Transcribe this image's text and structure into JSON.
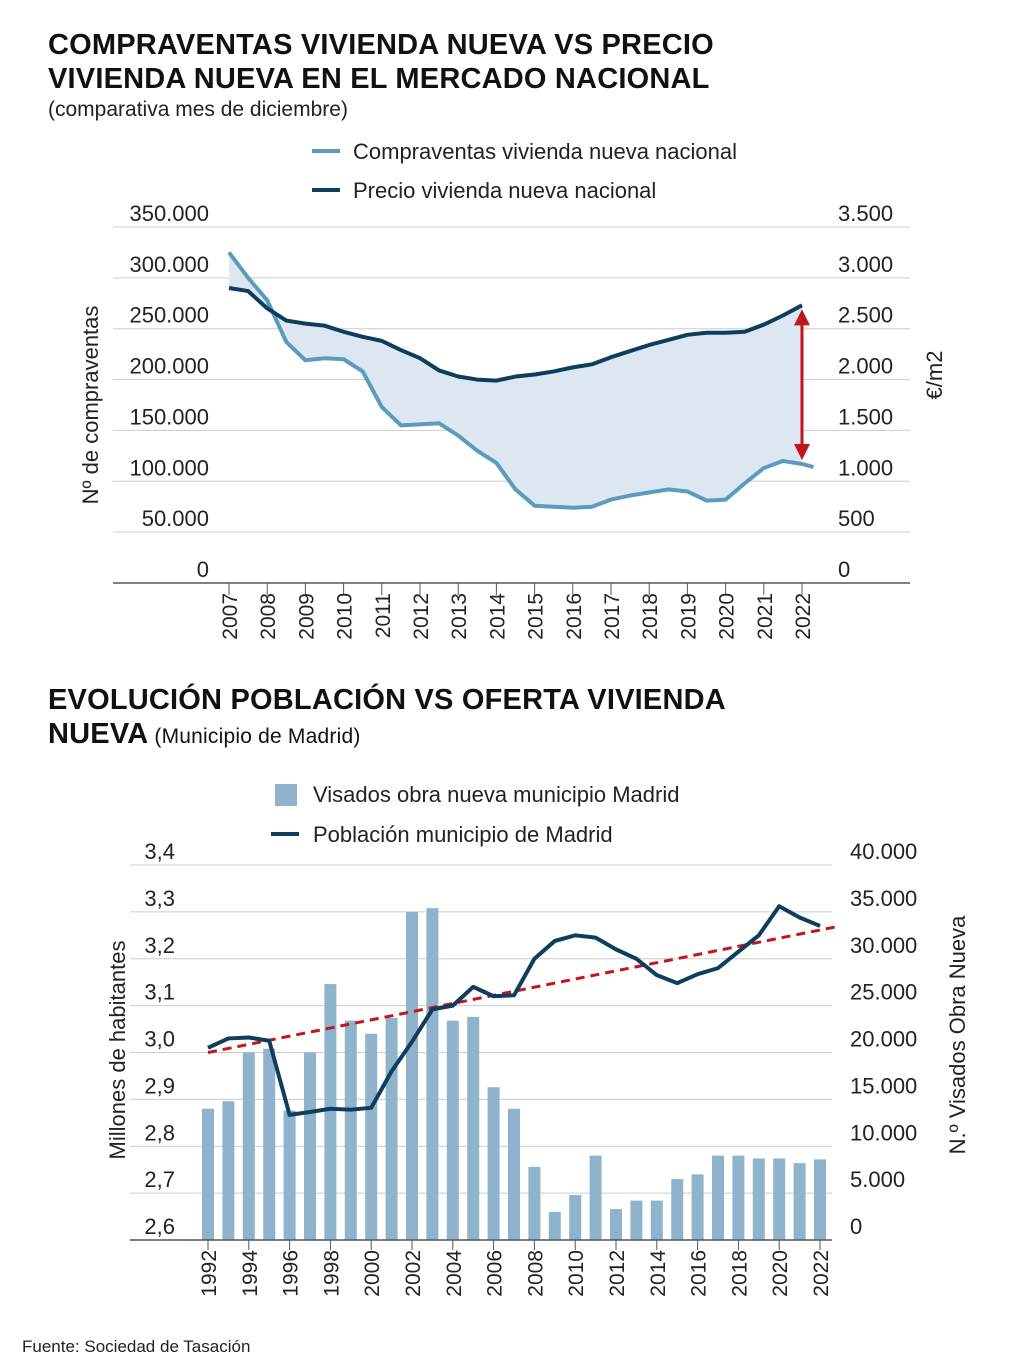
{
  "chart1": {
    "title_line1": "COMPRAVENTAS VIVIENDA NUEVA VS PRECIO",
    "title_line2": "VIVIENDA NUEVA EN EL MERCADO NACIONAL",
    "subtitle": "(comparativa mes de diciembre)"
  },
  "chart2": {
    "title_line1": "EVOLUCIÓN POBLACIÓN VS OFERTA VIVIENDA",
    "title_line2_bold": "NUEVA",
    "title_line2_rest": " (Municipio de Madrid)"
  },
  "source": "Fuente: Sociedad de Tasación",
  "colors": {
    "light_blue": "#5b9bbd",
    "dark_blue": "#0f3d5c",
    "fill": "#dde7f1",
    "bar": "#8fb3cc",
    "red": "#c0161d",
    "grid": "#cccccc"
  },
  "chart_data": [
    {
      "type": "line",
      "x": [
        2007,
        2007.5,
        2008,
        2008.5,
        2009,
        2009.5,
        2010,
        2010.5,
        2011,
        2011.5,
        2012,
        2012.5,
        2013,
        2013.5,
        2014,
        2014.5,
        2015,
        2015.5,
        2016,
        2016.5,
        2017,
        2017.5,
        2018,
        2018.5,
        2019,
        2019.5,
        2020,
        2020.5,
        2021,
        2021.5,
        2022,
        2022.3
      ],
      "xticks": [
        "2007",
        "2008",
        "2009",
        "2010",
        "2011",
        "2012",
        "2013",
        "2014",
        "2015",
        "2016",
        "2017",
        "2018",
        "2019",
        "2020",
        "2021",
        "2022"
      ],
      "xtick_values": [
        2007,
        2008,
        2009,
        2010,
        2011,
        2012,
        2013,
        2014,
        2015,
        2016,
        2017,
        2018,
        2019,
        2020,
        2021,
        2022
      ],
      "series": [
        {
          "name": "Compraventas vivienda nueva nacional",
          "axis": "left",
          "color": "#5b9bbd",
          "values": [
            325000,
            300000,
            278000,
            237000,
            219000,
            221000,
            220000,
            208000,
            173000,
            155000,
            156000,
            157000,
            145000,
            130000,
            118000,
            92000,
            76000,
            75000,
            74000,
            75000,
            82000,
            86000,
            89000,
            92000,
            90000,
            81000,
            82000,
            98000,
            113000,
            120000,
            117000,
            114000
          ]
        },
        {
          "name": "Precio vivienda nueva nacional",
          "axis": "right",
          "color": "#0f3d5c",
          "values": [
            2900,
            2870,
            2700,
            2580,
            2550,
            2530,
            2470,
            2420,
            2380,
            2290,
            2210,
            2090,
            2030,
            2000,
            1990,
            2030,
            2050,
            2080,
            2120,
            2150,
            2220,
            2280,
            2340,
            2390,
            2440,
            2460,
            2460,
            2470,
            2540,
            2630,
            2730,
            null
          ]
        }
      ],
      "y_left": {
        "label": "Nº de compraventas",
        "min": 0,
        "max": 350000,
        "ticks": [
          0,
          50000,
          100000,
          150000,
          200000,
          250000,
          300000,
          350000
        ],
        "tick_labels": [
          "0",
          "50.000",
          "100.000",
          "150.000",
          "200.000",
          "250.000",
          "300.000",
          "350.000"
        ]
      },
      "y_right": {
        "label": "€/m2",
        "min": 0,
        "max": 3500,
        "ticks": [
          0,
          500,
          1000,
          1500,
          2000,
          2500,
          3000,
          3500
        ],
        "tick_labels": [
          "0",
          "500",
          "1.000",
          "1.500",
          "2.000",
          "2.500",
          "3.000",
          "3.500"
        ]
      },
      "shaded_gap": true,
      "gap_arrow_x": 2022,
      "legend_position": "top"
    },
    {
      "type": "bar",
      "x": [
        1992,
        1993,
        1994,
        1995,
        1996,
        1997,
        1998,
        1999,
        2000,
        2001,
        2002,
        2003,
        2004,
        2005,
        2006,
        2007,
        2008,
        2009,
        2010,
        2011,
        2012,
        2013,
        2014,
        2015,
        2016,
        2017,
        2018,
        2019,
        2020,
        2021,
        2022
      ],
      "xticks": [
        "1992",
        "1994",
        "1996",
        "1998",
        "2000",
        "2002",
        "2004",
        "2006",
        "2008",
        "2010",
        "2012",
        "2014",
        "2016",
        "2018",
        "2020",
        "2022"
      ],
      "xtick_values": [
        1992,
        1994,
        1996,
        1998,
        2000,
        2002,
        2004,
        2006,
        2008,
        2010,
        2012,
        2014,
        2016,
        2018,
        2020,
        2022
      ],
      "series": [
        {
          "name": "Visados obra nueva municipio Madrid",
          "type": "bar",
          "axis": "right",
          "color": "#8fb3cc",
          "values": [
            14000,
            14800,
            20000,
            20400,
            13800,
            20000,
            27300,
            23400,
            22000,
            23700,
            35000,
            35400,
            23400,
            23800,
            16300,
            14000,
            7800,
            3000,
            4800,
            9000,
            3300,
            4200,
            4200,
            6500,
            7000,
            9000,
            9000,
            8700,
            8700,
            8200,
            8600
          ]
        },
        {
          "name": "Población municipio de Madrid",
          "type": "line",
          "axis": "left",
          "color": "#0f3d5c",
          "values": [
            3.01,
            3.03,
            3.032,
            3.025,
            2.867,
            2.873,
            2.88,
            2.878,
            2.882,
            2.96,
            3.023,
            3.092,
            3.1,
            3.14,
            3.12,
            3.122,
            3.2,
            3.238,
            3.25,
            3.245,
            3.22,
            3.2,
            3.165,
            3.148,
            3.167,
            3.18,
            3.215,
            3.25,
            3.312,
            3.288,
            3.27
          ]
        }
      ],
      "trendline": {
        "color": "#c0161d",
        "style": "dashed",
        "from": [
          1992,
          3.0
        ],
        "to": [
          2023,
          3.27
        ]
      },
      "y_left": {
        "label": "Millones de habitantes",
        "min": 2.6,
        "max": 3.4,
        "ticks": [
          2.6,
          2.7,
          2.8,
          2.9,
          3.0,
          3.1,
          3.2,
          3.3,
          3.4
        ],
        "tick_labels": [
          "2,6",
          "2,7",
          "2,8",
          "2,9",
          "3,0",
          "3,1",
          "3,2",
          "3,3",
          "3,4"
        ]
      },
      "y_right": {
        "label": "N.º Visados Obra Nueva",
        "min": 0,
        "max": 40000,
        "ticks": [
          0,
          5000,
          10000,
          15000,
          20000,
          25000,
          30000,
          35000,
          40000
        ],
        "tick_labels": [
          "0",
          "5.000",
          "10.000",
          "15.000",
          "20.000",
          "25.000",
          "30.000",
          "35.000",
          "40.000"
        ]
      },
      "legend_position": "top"
    }
  ]
}
